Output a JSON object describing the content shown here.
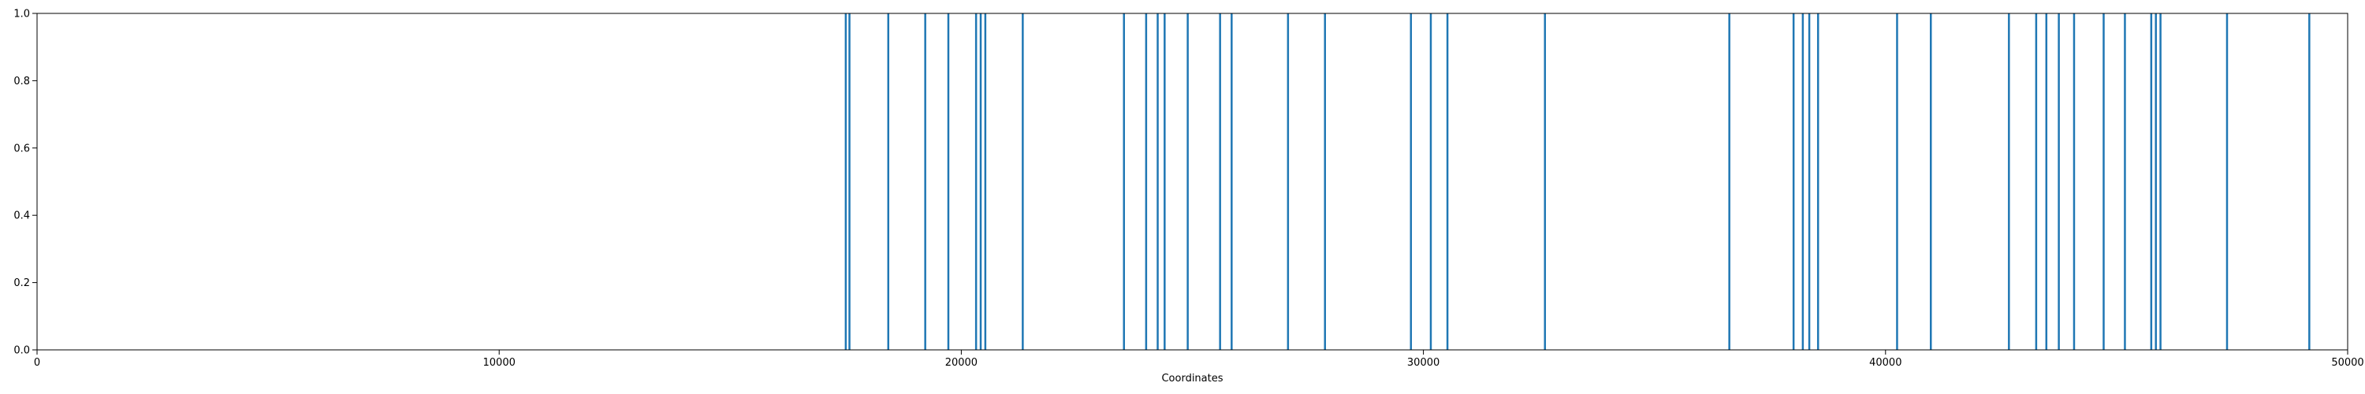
{
  "chart_data": {
    "type": "bar",
    "xlabel": "Coordinates",
    "ylabel": "",
    "title": "",
    "xlim": [
      0,
      50000
    ],
    "ylim": [
      0,
      1.0
    ],
    "xticks": [
      0,
      10000,
      20000,
      30000,
      40000,
      50000
    ],
    "yticks": [
      0.0,
      0.2,
      0.4,
      0.6,
      0.8,
      1.0
    ],
    "xtick_labels": [
      "0",
      "10000",
      "20000",
      "30000",
      "40000",
      "50000"
    ],
    "ytick_labels": [
      "0.0",
      "0.2",
      "0.4",
      "0.6",
      "0.8",
      "1.0"
    ],
    "grid": false,
    "series": [
      {
        "color": "#1f77b4",
        "x": [
          17500,
          17580,
          18420,
          19220,
          19720,
          20320,
          20420,
          20520,
          21330,
          23520,
          24000,
          24250,
          24400,
          24900,
          25600,
          25850,
          27070,
          27870,
          29730,
          30160,
          30520,
          32630,
          36620,
          38010,
          38210,
          38350,
          38540,
          40250,
          40980,
          42670,
          43260,
          43480,
          43750,
          44080,
          44720,
          45180,
          45750,
          45850,
          45950,
          47390,
          49170
        ],
        "values": [
          1.0,
          1.0,
          1.0,
          1.0,
          1.0,
          1.0,
          1.0,
          1.0,
          1.0,
          1.0,
          1.0,
          1.0,
          1.0,
          1.0,
          1.0,
          1.0,
          1.0,
          1.0,
          1.0,
          1.0,
          1.0,
          1.0,
          1.0,
          1.0,
          1.0,
          1.0,
          1.0,
          1.0,
          1.0,
          1.0,
          1.0,
          1.0,
          1.0,
          1.0,
          1.0,
          1.0,
          1.0,
          1.0,
          1.0,
          1.0,
          1.0
        ]
      }
    ]
  }
}
